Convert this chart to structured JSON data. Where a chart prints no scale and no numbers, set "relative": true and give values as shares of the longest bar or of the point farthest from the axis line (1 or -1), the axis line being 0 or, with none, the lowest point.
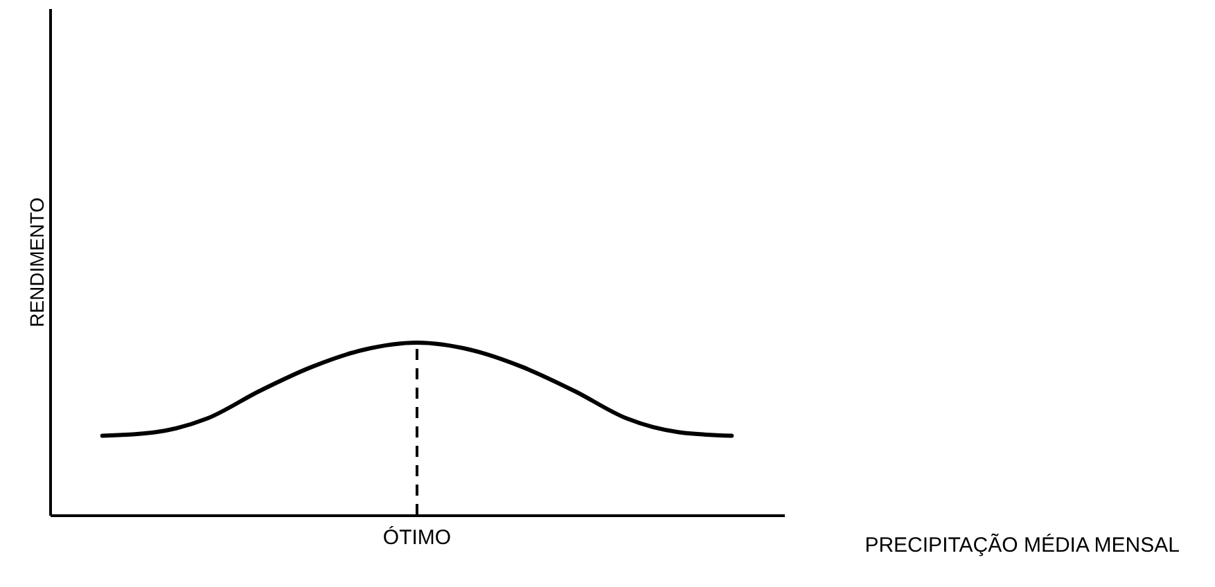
{
  "chart_data": {
    "type": "line",
    "relative": true,
    "xlabel": "PRECIPITAÇÃO MÉDIA MENSAL",
    "ylabel": "RENDIMENTO",
    "categories": [
      null,
      null,
      null,
      null,
      null,
      null,
      null,
      null,
      null,
      null,
      null,
      null,
      null
    ],
    "series": [
      {
        "color": "#000000",
        "values": [
          0.46,
          0.48,
          0.56,
          0.72,
          0.86,
          0.96,
          1,
          0.96,
          0.86,
          0.72,
          0.56,
          0.48,
          0.46
        ]
      }
    ],
    "annotations": [
      "ÓTIMO"
    ],
    "marker": "none",
    "line_style": "solid"
  }
}
